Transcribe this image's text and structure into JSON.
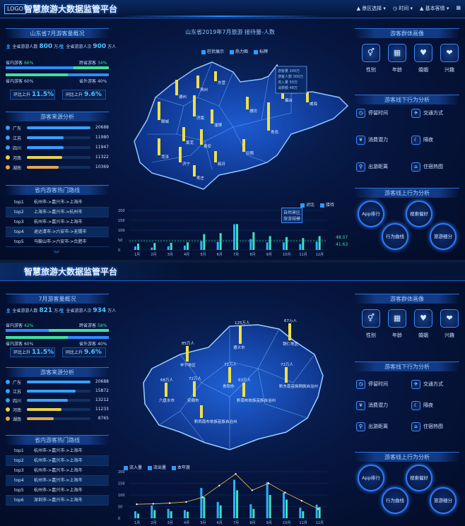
{
  "screen1": {
    "logo": "LOGO",
    "title": "智慧旅游大数据监管平台",
    "menu": [
      "景区选择",
      "时间",
      "基本客情"
    ],
    "overview": {
      "title": "山东省7月游客量概况",
      "total_label": "全省游游人数",
      "total_value": "800",
      "total_unit": "万人",
      "received_label": "全省游游人次",
      "received_value": "900",
      "received_unit": "万人",
      "in_province_label": "省内游客",
      "in_province_pct": "66%",
      "out_province_label": "跨省游客",
      "out_province_pct": "34%",
      "local_label": "省内游客",
      "local_pct": "60%",
      "external_label": "省外游客",
      "external_pct": "40%",
      "yoy_label": "环比上升",
      "yoy_value": "11.5%",
      "mom_label": "同比上升",
      "mom_value": "9.6%"
    },
    "source": {
      "title": "游客来源分析",
      "rows": [
        {
          "name": "广东",
          "value": "20688",
          "pct": 1.0,
          "color": "#3aa0ff"
        },
        {
          "name": "江苏",
          "value": "11980",
          "pct": 0.58,
          "color": "#3aa0ff"
        },
        {
          "name": "四川",
          "value": "11947",
          "pct": 0.58,
          "color": "#3aa0ff"
        },
        {
          "name": "河南",
          "value": "11322",
          "pct": 0.55,
          "color": "#e6d34b"
        },
        {
          "name": "湖南",
          "value": "10369",
          "pct": 0.5,
          "color": "#e6a64b"
        }
      ]
    },
    "routes": {
      "title": "省内游客热门路线",
      "rows": [
        {
          "rank": "top1",
          "text": "杭州市->嘉兴市->上海市"
        },
        {
          "rank": "top2",
          "text": "上海市->嘉兴市->杭州市"
        },
        {
          "rank": "top3",
          "text": "杭州市->嘉兴市->上海市"
        },
        {
          "rank": "top4",
          "text": "途达清市->六安市->无锡市"
        },
        {
          "rank": "top5",
          "text": "马鞍山市->六安市->合肥市"
        }
      ]
    },
    "map": {
      "title": "山东省2019年7月旅游 接待量-人数",
      "legend": [
        "柱状展示",
        "热力图",
        "标牌"
      ],
      "tooltip": [
        "游客量 200万",
        "游客人数 300万",
        "流入量 50万",
        "消费额 48万"
      ],
      "cities": [
        "德州",
        "滨州",
        "东营",
        "聊城",
        "济南",
        "淄博",
        "潍坊",
        "青岛",
        "烟台",
        "威海",
        "泰安",
        "莱芜",
        "临沂",
        "日照",
        "菏泽",
        "济宁",
        "枣庄"
      ]
    },
    "portrait": {
      "title": "游客群体画像",
      "items": [
        {
          "label": "性别",
          "icon": "gender-icon",
          "glyph": "⚥"
        },
        {
          "label": "年龄",
          "icon": "calendar-icon",
          "glyph": "▦"
        },
        {
          "label": "婚姻",
          "icon": "couple-icon",
          "glyph": "♥"
        },
        {
          "label": "兴趣",
          "icon": "heart-icon",
          "glyph": "❤"
        }
      ]
    },
    "offline": {
      "title": "游客线下行为分析",
      "items": [
        "停留时间",
        "交通方式",
        "消费潜力",
        "隔夜",
        "出游距离",
        "住宿热图"
      ]
    },
    "online": {
      "title": "游客线上行为分析",
      "items": [
        "App排行",
        "搜索偏好",
        "行为曲线",
        "旅游细分"
      ]
    },
    "chart_legend": [
      "对比",
      "接待"
    ],
    "chart_labels": [
      "48.07",
      "41.63",
      "131"
    ],
    "chart_box": [
      "自然景区",
      "旅游规模"
    ]
  },
  "screen2": {
    "title": "智慧旅游大数据监管平台",
    "overview": {
      "title": "7月游客量概况",
      "total_label": "全省游游人数",
      "total_value": "821",
      "total_unit": "万人",
      "received_label": "全省游游人次",
      "received_value": "934",
      "received_unit": "万人",
      "in_province_label": "省内游客",
      "in_province_pct": "42%",
      "out_province_label": "跨省游客",
      "out_province_pct": "58%",
      "local_label": "省内游客",
      "local_pct": "60%",
      "external_label": "省外游客",
      "external_pct": "40%",
      "yoy_label": "环比上升",
      "yoy_value": "11.5%",
      "mom_label": "同比上升",
      "mom_value": "9.6%"
    },
    "source": {
      "title": "游客来源分析",
      "rows": [
        {
          "name": "广东",
          "value": "20688",
          "pct": 1.0,
          "color": "#3aa0ff"
        },
        {
          "name": "江苏",
          "value": "15872",
          "pct": 0.77,
          "color": "#3aa0ff"
        },
        {
          "name": "四川",
          "value": "13212",
          "pct": 0.64,
          "color": "#3aa0ff"
        },
        {
          "name": "河南",
          "value": "11233",
          "pct": 0.54,
          "color": "#e6d34b"
        },
        {
          "name": "湖南",
          "value": "8765",
          "pct": 0.42,
          "color": "#e6a64b"
        }
      ]
    },
    "routes": {
      "title": "省内游客热门路线",
      "rows": [
        {
          "rank": "top1",
          "text": "杭州市->嘉兴市->上海市"
        },
        {
          "rank": "top2",
          "text": "杭州市->嘉兴市->上海市"
        },
        {
          "rank": "top3",
          "text": "杭州市->嘉兴市->上海市"
        },
        {
          "rank": "top4",
          "text": "杭州市->嘉兴市->上海市"
        },
        {
          "rank": "top5",
          "text": "杭州市->嘉兴市->上海市"
        },
        {
          "rank": "top6",
          "text": "深圳市->嘉兴市->上海市"
        }
      ]
    },
    "map": {
      "cities": [
        {
          "name": "遵义市",
          "value": "125万人"
        },
        {
          "name": "铜仁地区",
          "value": "67万人"
        },
        {
          "name": "毕节地区",
          "value": "85万人"
        },
        {
          "name": "贵阳市",
          "value": "72万人"
        },
        {
          "name": "黔东南苗族侗族自治州",
          "value": "72万人"
        },
        {
          "name": "六盘水市",
          "value": "68万人"
        },
        {
          "name": "安顺市",
          "value": "72万人"
        },
        {
          "name": "黔南布依族苗族自治州",
          "value": "63万人"
        },
        {
          "name": "黔西南布依族苗族自治州",
          "value": ""
        }
      ]
    },
    "portrait": {
      "title": "游客群体画像",
      "items": [
        {
          "label": "性别",
          "icon": "gender-icon",
          "glyph": "⚥"
        },
        {
          "label": "年龄",
          "icon": "calendar-icon",
          "glyph": "▦"
        },
        {
          "label": "婚姻",
          "icon": "couple-icon",
          "glyph": "♥"
        },
        {
          "label": "兴趣",
          "icon": "heart-icon",
          "glyph": "❤"
        }
      ]
    },
    "offline": {
      "title": "游客线下行为分析",
      "items": [
        "停留时间",
        "交通方式",
        "消费潜力",
        "隔夜",
        "出游距离",
        "住宿热图"
      ]
    },
    "online": {
      "title": "游客线上行为分析",
      "items": [
        "App排行",
        "搜索偏好",
        "行为曲线",
        "旅游细分"
      ]
    },
    "chart_legend": [
      "流入量",
      "流出量",
      "本年度"
    ]
  },
  "chart_data": [
    {
      "type": "bar",
      "categories": [
        "1月",
        "2月",
        "3月",
        "4月",
        "5月",
        "6月",
        "7月",
        "8月",
        "9月",
        "10月",
        "11月",
        "12月"
      ],
      "ylim": [
        0,
        200
      ],
      "yticks": [
        "200",
        "150",
        "100",
        "50",
        "0"
      ],
      "series": [
        {
          "name": "对比",
          "values": [
            18,
            12,
            18,
            22,
            45,
            40,
            130,
            55,
            38,
            38,
            30,
            42
          ]
        },
        {
          "name": "接待",
          "values": [
            32,
            35,
            36,
            38,
            80,
            85,
            131,
            90,
            70,
            65,
            60,
            70
          ]
        }
      ]
    },
    {
      "type": "bar",
      "categories": [
        "1月",
        "2月",
        "3月",
        "4月",
        "5月",
        "6月",
        "7月",
        "8月",
        "9月",
        "10月",
        "11月",
        "12月"
      ],
      "ylim": [
        0,
        200
      ],
      "yticks": [
        "200",
        "150",
        "100",
        "50",
        "0"
      ],
      "series": [
        {
          "name": "流入量",
          "values": [
            30,
            55,
            40,
            35,
            130,
            70,
            165,
            60,
            155,
            110,
            45,
            58
          ]
        },
        {
          "name": "流出量",
          "values": [
            20,
            35,
            30,
            28,
            90,
            55,
            120,
            40,
            100,
            80,
            30,
            48
          ]
        },
        {
          "name": "本年度",
          "values": [
            60,
            62,
            65,
            70,
            90,
            140,
            190,
            120,
            150,
            110,
            75,
            40
          ]
        }
      ]
    }
  ]
}
